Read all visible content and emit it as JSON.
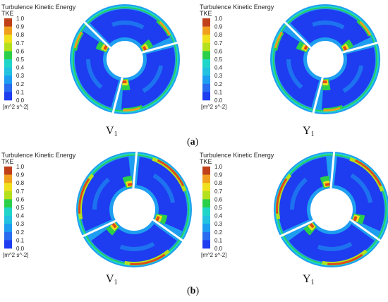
{
  "colors": {
    "background": "#ffffff",
    "low": "#1e3cf0",
    "mid_low": "#1e9ef0",
    "mid": "#1fd6c8",
    "green": "#2ccf4a",
    "yellow_green": "#b4e01e",
    "yellow": "#f0e01e",
    "orange": "#f0a01e",
    "high": "#e04a1a",
    "top": "#c0401a"
  },
  "legend": {
    "title": "Turbulence Kinetic Energy",
    "variable": "TKE",
    "unit": "[m^2 s^-2]",
    "ticks": [
      "1.0",
      "0.9",
      "0.8",
      "0.7",
      "0.6",
      "0.5",
      "0.4",
      "0.3",
      "0.2",
      "0.1",
      "0.0"
    ],
    "swatches": [
      "#c0401a",
      "#f0a01e",
      "#f0e01e",
      "#b4e01e",
      "#2ccf4a",
      "#1fd6c8",
      "#22c2e0",
      "#1e9ef0",
      "#2a6cf0",
      "#1e3cf0"
    ]
  },
  "panels": [
    {
      "label_main": "V",
      "label_sub": "1"
    },
    {
      "label_main": "Y",
      "label_sub": "1"
    },
    {
      "label_main": "V",
      "label_sub": "1"
    },
    {
      "label_main": "Y",
      "label_sub": "1"
    }
  ],
  "subfigures": [
    {
      "open": "(",
      "letter": "a",
      "close": ")"
    },
    {
      "open": "(",
      "letter": "b",
      "close": ")"
    }
  ]
}
